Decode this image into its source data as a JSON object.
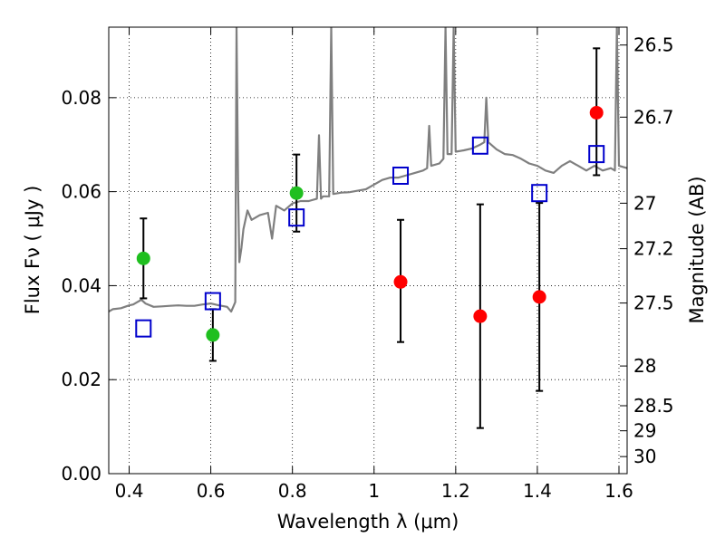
{
  "colors": {
    "model_spectrum": "#7f7f7f",
    "green_points": "#1fbf1f",
    "red_points": "#ff0000",
    "model_photometry_squares": "#0000cc",
    "error_bars": "#000000"
  },
  "chart_data": {
    "type": "scatter",
    "title": "",
    "xlabel": "Wavelength  λ (μm)",
    "ylabel": "Flux  Fν  ( μJy )",
    "y2label": "Magnitude (AB)",
    "xlim": [
      0.35,
      1.62
    ],
    "ylim": [
      0.0,
      0.095
    ],
    "grid": true,
    "grid_style": "dotted",
    "x_ticks": [
      {
        "value": 0.4,
        "label": "0.4"
      },
      {
        "value": 0.6,
        "label": "0.6"
      },
      {
        "value": 0.8,
        "label": "0.8"
      },
      {
        "value": 1.0,
        "label": "1"
      },
      {
        "value": 1.2,
        "label": "1.2"
      },
      {
        "value": 1.4,
        "label": "1.4"
      },
      {
        "value": 1.6,
        "label": "1.6"
      }
    ],
    "y_ticks": [
      {
        "value": 0.0,
        "label": "0.00"
      },
      {
        "value": 0.02,
        "label": "0.02"
      },
      {
        "value": 0.04,
        "label": "0.04"
      },
      {
        "value": 0.06,
        "label": "0.06"
      },
      {
        "value": 0.08,
        "label": "0.08"
      }
    ],
    "y2_ticks": [
      {
        "value": 26.5,
        "label": "26.5"
      },
      {
        "value": 26.7,
        "label": "26.7"
      },
      {
        "value": 27.0,
        "label": "27"
      },
      {
        "value": 27.2,
        "label": "27.2"
      },
      {
        "value": 27.5,
        "label": "27.5"
      },
      {
        "value": 28.0,
        "label": "28"
      },
      {
        "value": 28.5,
        "label": "28.5"
      },
      {
        "value": 29.0,
        "label": "29"
      },
      {
        "value": 30.0,
        "label": "30"
      }
    ],
    "series": [
      {
        "kind": "line",
        "color": "#7f7f7f",
        "x": [
          0.35,
          0.36,
          0.38,
          0.4,
          0.41,
          0.42,
          0.43,
          0.44,
          0.46,
          0.48,
          0.5,
          0.52,
          0.54,
          0.56,
          0.58,
          0.6,
          0.62,
          0.64,
          0.65,
          0.655,
          0.66,
          0.663,
          0.667,
          0.67,
          0.675,
          0.68,
          0.69,
          0.7,
          0.72,
          0.74,
          0.75,
          0.76,
          0.78,
          0.8,
          0.82,
          0.84,
          0.86,
          0.865,
          0.87,
          0.875,
          0.89,
          0.895,
          0.9,
          0.92,
          0.94,
          0.96,
          0.98,
          1.0,
          1.02,
          1.04,
          1.06,
          1.08,
          1.1,
          1.12,
          1.13,
          1.135,
          1.14,
          1.16,
          1.17,
          1.175,
          1.18,
          1.19,
          1.195,
          1.2,
          1.22,
          1.24,
          1.26,
          1.27,
          1.275,
          1.28,
          1.3,
          1.32,
          1.34,
          1.36,
          1.38,
          1.4,
          1.42,
          1.44,
          1.46,
          1.48,
          1.5,
          1.52,
          1.54,
          1.56,
          1.58,
          1.59,
          1.595,
          1.6,
          1.62
        ],
        "y": [
          0.0345,
          0.035,
          0.0352,
          0.0358,
          0.036,
          0.0365,
          0.037,
          0.0362,
          0.0355,
          0.0356,
          0.0357,
          0.0358,
          0.0357,
          0.0357,
          0.036,
          0.0362,
          0.0358,
          0.0355,
          0.0345,
          0.0355,
          0.0365,
          0.095,
          0.06,
          0.045,
          0.048,
          0.052,
          0.056,
          0.054,
          0.055,
          0.0555,
          0.05,
          0.057,
          0.056,
          0.0575,
          0.058,
          0.058,
          0.0585,
          0.072,
          0.0585,
          0.059,
          0.059,
          0.095,
          0.0595,
          0.0598,
          0.0599,
          0.0602,
          0.0605,
          0.0615,
          0.0625,
          0.063,
          0.063,
          0.0635,
          0.064,
          0.0645,
          0.065,
          0.074,
          0.0655,
          0.066,
          0.067,
          0.095,
          0.068,
          0.068,
          0.095,
          0.0685,
          0.0688,
          0.0692,
          0.07,
          0.0705,
          0.08,
          0.0705,
          0.069,
          0.068,
          0.0678,
          0.067,
          0.066,
          0.0655,
          0.0645,
          0.064,
          0.0655,
          0.0665,
          0.0655,
          0.0645,
          0.0655,
          0.0645,
          0.065,
          0.0645,
          0.095,
          0.0655,
          0.065
        ]
      },
      {
        "kind": "points",
        "marker": "circle",
        "color": "#1fbf1f",
        "x": [
          0.435,
          0.605,
          0.81
        ],
        "y": [
          0.0458,
          0.0295,
          0.0597
        ],
        "yerr_low": [
          0.0085,
          0.0055,
          0.0082
        ],
        "yerr_high": [
          0.0085,
          0.0055,
          0.0082
        ]
      },
      {
        "kind": "points",
        "marker": "circle",
        "color": "#ff0000",
        "x": [
          1.065,
          1.26,
          1.405,
          1.545
        ],
        "y": [
          0.0408,
          0.0335,
          0.0376,
          0.0768
        ],
        "yerr_low": [
          0.0128,
          0.0238,
          0.02,
          0.0133
        ],
        "yerr_high": [
          0.0132,
          0.0238,
          0.02,
          0.0137
        ]
      },
      {
        "kind": "points",
        "marker": "square",
        "color": "#0000cc",
        "x": [
          0.435,
          0.605,
          0.81,
          1.065,
          1.26,
          1.405,
          1.545
        ],
        "y": [
          0.0309,
          0.0367,
          0.0545,
          0.0634,
          0.0698,
          0.0597,
          0.068
        ]
      }
    ]
  }
}
